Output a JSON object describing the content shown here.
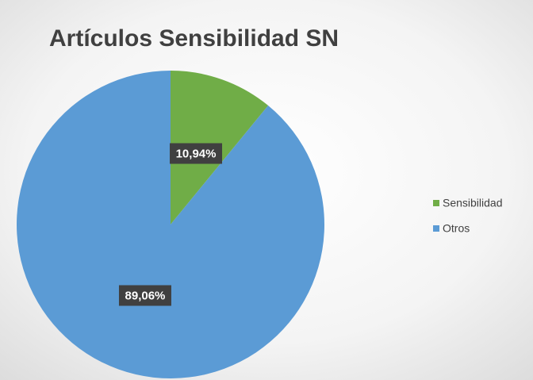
{
  "chart_data": {
    "type": "pie",
    "title": "Artículos Sensibilidad SN",
    "categories": [
      "Sensibilidad",
      "Otros"
    ],
    "values": [
      10.94,
      89.06
    ],
    "value_labels": [
      "10,94%",
      "89,06%"
    ],
    "colors": [
      "#70ad47",
      "#5b9bd5"
    ],
    "legend": "right"
  }
}
